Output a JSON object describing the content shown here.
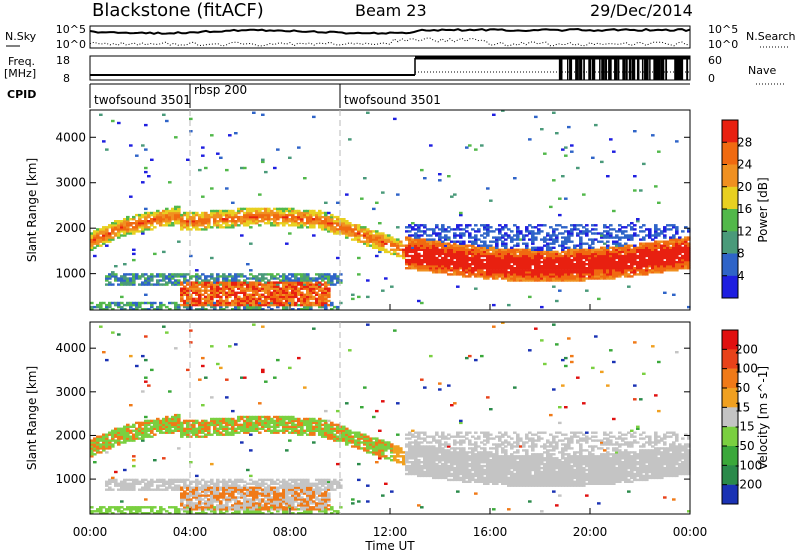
{
  "header": {
    "station": "Blackstone (fitACF)",
    "beam": "Beam 23",
    "date": "29/Dec/2014"
  },
  "left_labels": {
    "nsky": "N.Sky",
    "freq": "Freq.",
    "freq_unit": "[MHz]",
    "cpid": "CPID"
  },
  "right_labels": {
    "nsearch": "N.Search",
    "nave": "Nave"
  },
  "sky_axis": {
    "top_label": "10^5",
    "bottom_label": "10^0"
  },
  "search_axis": {
    "top_label": "10^5",
    "bottom_label": "10^0"
  },
  "freq_axis": {
    "top_label": "18",
    "bottom_label": "8"
  },
  "nave_axis": {
    "top_label": "60",
    "bottom_label": "0"
  },
  "cpid_segments": [
    {
      "label": "twofsound 3501",
      "start_h": 0.0
    },
    {
      "label": "rbsp 200",
      "start_h": 4.0
    },
    {
      "label": "twofsound 3501",
      "start_h": 10.0
    }
  ],
  "time_axis": {
    "label": "Time UT",
    "ticks": [
      "00:00",
      "04:00",
      "08:00",
      "12:00",
      "16:00",
      "20:00",
      "00:00"
    ]
  },
  "chart_data": [
    {
      "type": "heatmap",
      "name": "power",
      "ylabel": "Slant Range [km]",
      "xlim_hours": [
        0,
        24
      ],
      "ylim_km": [
        200,
        4600
      ],
      "yticks": [
        "1000",
        "2000",
        "3000",
        "4000"
      ],
      "colorbar": {
        "label": "Power [dB]",
        "ticks": [
          "4",
          "8",
          "12",
          "16",
          "20",
          "24",
          "28"
        ],
        "colors": [
          "#1f1fe0",
          "#2f64c8",
          "#4a9a7a",
          "#52b84a",
          "#e8d020",
          "#f09020",
          "#f06a10",
          "#e82010"
        ]
      }
    },
    {
      "type": "heatmap",
      "name": "velocity",
      "ylabel": "Slant Range [km]",
      "xlim_hours": [
        0,
        24
      ],
      "ylim_km": [
        200,
        4600
      ],
      "yticks": [
        "1000",
        "2000",
        "3000",
        "4000"
      ],
      "colorbar": {
        "label": "Velocity [m s^-1]",
        "ticks": [
          "200",
          "100",
          "50",
          "15",
          "-15",
          "-50",
          "-100",
          "-200"
        ],
        "colors": [
          "#1a32b4",
          "#2a8a4a",
          "#3aa83a",
          "#7ad040",
          "#c4c4c4",
          "#f0a020",
          "#f07a18",
          "#e8421a",
          "#e01010"
        ]
      }
    }
  ],
  "colors": {
    "axis": "#000000",
    "dashed_line": "#b8b8b8"
  }
}
